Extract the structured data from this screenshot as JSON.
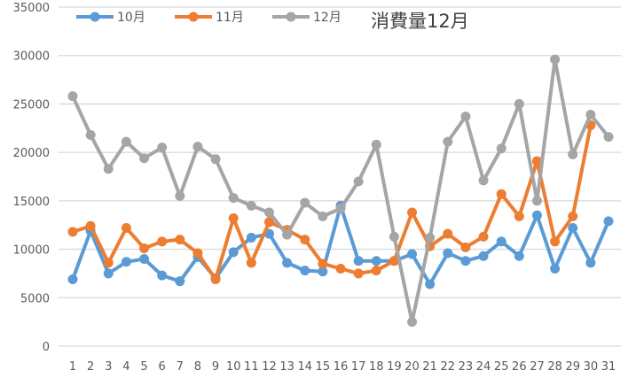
{
  "chart_data": {
    "type": "line",
    "title": "消費量12月",
    "xlabel": "",
    "ylabel": "",
    "ylim": [
      0,
      35000
    ],
    "yticks": [
      0,
      5000,
      10000,
      15000,
      20000,
      25000,
      30000,
      35000
    ],
    "grid": true,
    "legend": "top-left",
    "categories": [
      "1",
      "2",
      "3",
      "4",
      "5",
      "6",
      "7",
      "8",
      "9",
      "10",
      "11",
      "12",
      "13",
      "14",
      "15",
      "16",
      "17",
      "18",
      "19",
      "20",
      "21",
      "22",
      "23",
      "24",
      "25",
      "26",
      "27",
      "28",
      "29",
      "30",
      "31"
    ],
    "series": [
      {
        "name": "10月",
        "color": "#5B9BD5",
        "values": [
          6900,
          11900,
          7500,
          8700,
          9000,
          7300,
          6700,
          9200,
          7000,
          9700,
          11200,
          11600,
          8600,
          7800,
          7700,
          14500,
          8800,
          8800,
          8800,
          9500,
          6400,
          9600,
          8800,
          9300,
          10800,
          9300,
          13500,
          8000,
          12200,
          8600,
          12900
        ]
      },
      {
        "name": "11月",
        "color": "#ED7D31",
        "values": [
          11800,
          12400,
          8600,
          12200,
          10100,
          10800,
          11000,
          9600,
          6900,
          13200,
          8600,
          12800,
          12000,
          11000,
          8500,
          8000,
          7500,
          7800,
          8800,
          13800,
          10300,
          11600,
          10200,
          11300,
          15700,
          13400,
          19100,
          10800,
          13400,
          22800,
          null
        ]
      },
      {
        "name": "12月",
        "color": "#A5A5A5",
        "values": [
          25800,
          21800,
          18300,
          21100,
          19400,
          20500,
          15500,
          20600,
          19300,
          15300,
          14500,
          13800,
          11500,
          14800,
          13400,
          14200,
          17000,
          20800,
          11300,
          2500,
          11200,
          21100,
          23700,
          17100,
          20400,
          25000,
          15000,
          29600,
          19800,
          23900,
          21600
        ]
      }
    ]
  }
}
